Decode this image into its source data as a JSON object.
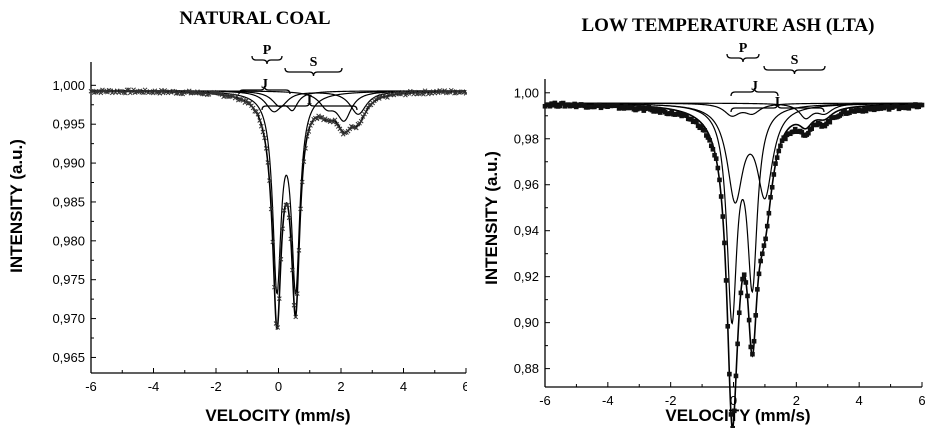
{
  "chart_data": [
    {
      "type": "scatter",
      "title": "NATURAL COAL",
      "xlabel": "VELOCITY (mm/s)",
      "ylabel": "INTENSITY (a.u.)",
      "xlim": [
        -6,
        6
      ],
      "ylim": [
        0.963,
        1.003
      ],
      "x_ticks": [
        -6,
        -4,
        -2,
        0,
        2,
        4,
        6
      ],
      "x_tick_labels": [
        "-6",
        "-4",
        "-2",
        "0",
        "2",
        "4",
        "6"
      ],
      "y_ticks": [
        0.965,
        0.97,
        0.975,
        0.98,
        0.985,
        0.99,
        0.995,
        1.0
      ],
      "y_tick_labels": [
        "0,965",
        "0,970",
        "0,975",
        "0,980",
        "0,985",
        "0,990",
        "0,995",
        "1,000"
      ],
      "grid": false,
      "baseline": 0.9993,
      "marker": "x",
      "component_labels": [
        "P",
        "S",
        "J",
        "I"
      ],
      "components": [
        {
          "label": "J",
          "center": -0.05,
          "depth": 0.0245,
          "hwhm": 0.16
        },
        {
          "label": "J",
          "center": 0.55,
          "depth": 0.0245,
          "hwhm": 0.16
        },
        {
          "label": "P",
          "center": -0.15,
          "depth": 0.0025,
          "hwhm": 0.32
        },
        {
          "label": "P",
          "center": 0.45,
          "depth": 0.002,
          "hwhm": 0.2
        },
        {
          "label": "S",
          "center": 1.55,
          "depth": 0.0018,
          "hwhm": 0.3
        },
        {
          "label": "S",
          "center": 2.1,
          "depth": 0.0035,
          "hwhm": 0.28
        },
        {
          "label": "I",
          "center": 0.05,
          "depth": 0.002,
          "hwhm": 0.3
        },
        {
          "label": "I",
          "center": 2.55,
          "depth": 0.003,
          "hwhm": 0.32
        }
      ]
    },
    {
      "type": "scatter",
      "title": "LOW TEMPERATURE ASH (LTA)",
      "xlabel": "VELOCITY (mm/s)",
      "ylabel": "INTENSITY (a.u.)",
      "xlim": [
        -6,
        6
      ],
      "ylim": [
        0.872,
        1.006
      ],
      "x_ticks": [
        -6,
        -4,
        -2,
        0,
        2,
        4,
        6
      ],
      "x_tick_labels": [
        "-6",
        "-4",
        "-2",
        "0",
        "2",
        "4",
        "6"
      ],
      "y_ticks": [
        0.88,
        0.9,
        0.92,
        0.94,
        0.96,
        0.98,
        1.0
      ],
      "y_tick_labels": [
        "0,88",
        "0,90",
        "0,92",
        "0,94",
        "0,96",
        "0,98",
        "1,00"
      ],
      "grid": false,
      "baseline": 0.9955,
      "marker": "square",
      "component_labels": [
        "P",
        "S",
        "J",
        "I"
      ],
      "components": [
        {
          "label": "J",
          "center": -0.05,
          "depth": 0.09,
          "hwhm": 0.19
        },
        {
          "label": "J",
          "center": 0.6,
          "depth": 0.075,
          "hwhm": 0.19
        },
        {
          "label": "I",
          "center": 0.05,
          "depth": 0.04,
          "hwhm": 0.3
        },
        {
          "label": "I",
          "center": 1.0,
          "depth": 0.038,
          "hwhm": 0.3
        },
        {
          "label": "P",
          "center": -0.05,
          "depth": 0.005,
          "hwhm": 0.3
        },
        {
          "label": "P",
          "center": 0.6,
          "depth": 0.004,
          "hwhm": 0.3
        },
        {
          "label": "S",
          "center": 2.3,
          "depth": 0.006,
          "hwhm": 0.25
        },
        {
          "label": "S",
          "center": 2.9,
          "depth": 0.004,
          "hwhm": 0.3
        }
      ]
    }
  ]
}
